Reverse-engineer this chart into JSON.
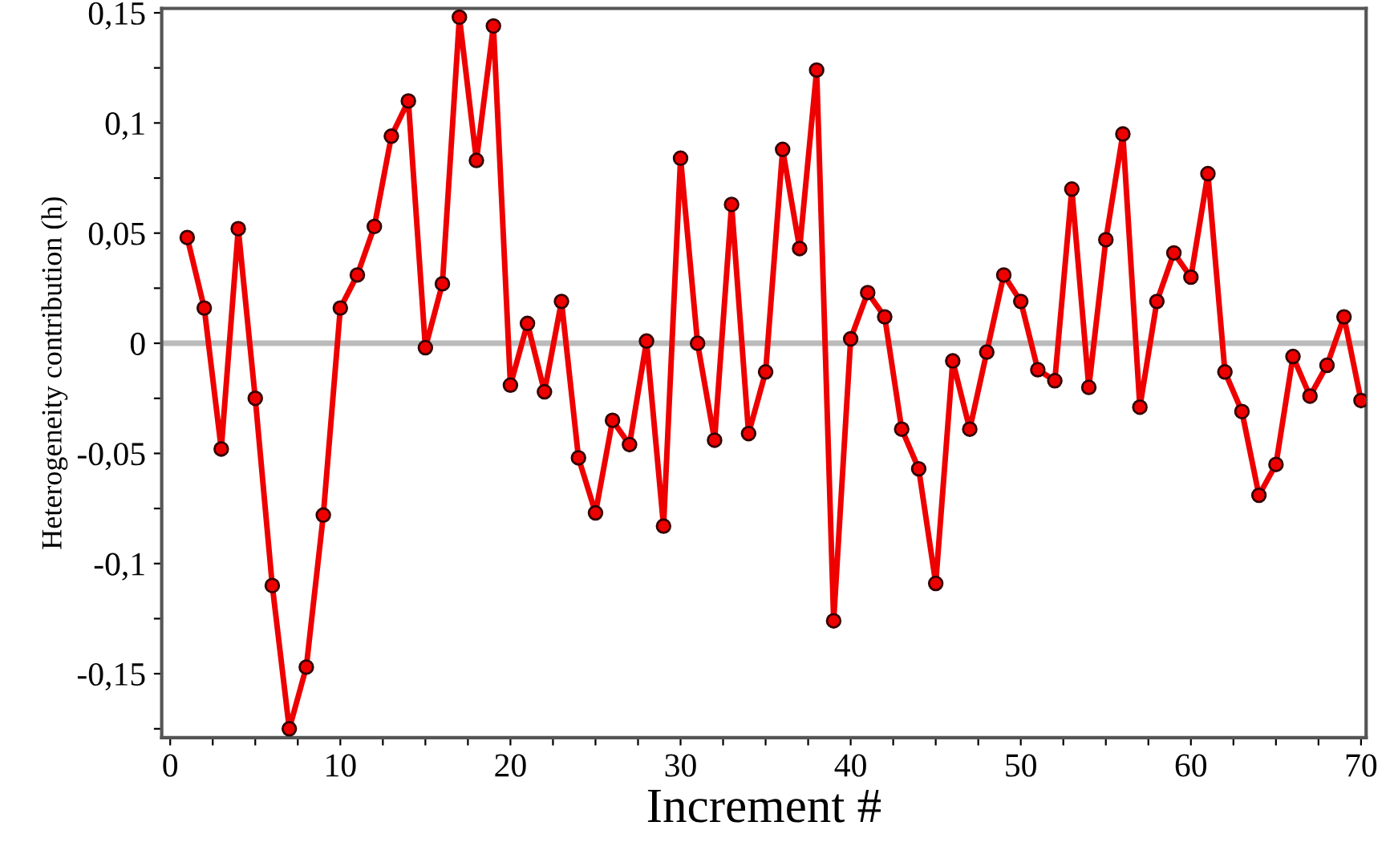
{
  "chart_data": {
    "type": "line",
    "xlabel": "Increment #",
    "ylabel": "Heterogeneity contribution (h)",
    "x": [
      1,
      2,
      3,
      4,
      5,
      6,
      7,
      8,
      9,
      10,
      11,
      12,
      13,
      14,
      15,
      16,
      17,
      18,
      19,
      20,
      21,
      22,
      23,
      24,
      25,
      26,
      27,
      28,
      29,
      30,
      31,
      32,
      33,
      34,
      35,
      36,
      37,
      38,
      39,
      40,
      41,
      42,
      43,
      44,
      45,
      46,
      47,
      48,
      49,
      50,
      51,
      52,
      53,
      54,
      55,
      56,
      57,
      58,
      59,
      60,
      61,
      62,
      63,
      64,
      65,
      66,
      67,
      68,
      69,
      70
    ],
    "series": [
      {
        "color": "#ee0000",
        "values": [
          0.048,
          0.016,
          -0.048,
          0.052,
          -0.025,
          -0.11,
          -0.175,
          -0.147,
          -0.078,
          0.016,
          0.031,
          0.053,
          0.094,
          0.11,
          -0.002,
          0.027,
          0.148,
          0.083,
          0.144,
          -0.019,
          0.009,
          -0.022,
          0.019,
          -0.052,
          -0.077,
          -0.035,
          -0.046,
          0.001,
          -0.083,
          0.084,
          0.0,
          -0.044,
          0.063,
          -0.041,
          -0.013,
          0.088,
          0.043,
          0.124,
          -0.126,
          0.002,
          0.023,
          0.012,
          -0.039,
          -0.057,
          -0.109,
          -0.008,
          -0.039,
          -0.004,
          0.031,
          0.019,
          -0.012,
          -0.017,
          0.07,
          -0.02,
          0.047,
          0.095,
          -0.029,
          0.019,
          0.041,
          0.03,
          0.077,
          -0.013,
          -0.031,
          -0.069,
          -0.055,
          -0.006,
          -0.024,
          -0.01,
          0.012,
          -0.026
        ]
      }
    ],
    "marker": "circle",
    "line_style": "solid",
    "grid": false,
    "xlim": [
      -0.5,
      70.3
    ],
    "ylim": [
      -0.179,
      0.152
    ],
    "xticks": [
      0,
      {
        "value": 2.5,
        "label": null
      },
      {
        "value": 5,
        "label": null
      },
      {
        "value": 7.5,
        "label": null
      },
      10,
      {
        "value": 12.5,
        "label": null
      },
      {
        "value": 15,
        "label": null
      },
      {
        "value": 17.5,
        "label": null
      },
      20,
      {
        "value": 22.5,
        "label": null
      },
      {
        "value": 25,
        "label": null
      },
      {
        "value": 27.5,
        "label": null
      },
      30,
      {
        "value": 32.5,
        "label": null
      },
      {
        "value": 35,
        "label": null
      },
      {
        "value": 37.5,
        "label": null
      },
      40,
      {
        "value": 42.5,
        "label": null
      },
      {
        "value": 45,
        "label": null
      },
      {
        "value": 47.5,
        "label": null
      },
      50,
      {
        "value": 52.5,
        "label": null
      },
      {
        "value": 55,
        "label": null
      },
      {
        "value": 57.5,
        "label": null
      },
      60,
      {
        "value": 62.5,
        "label": null
      },
      {
        "value": 65,
        "label": null
      },
      {
        "value": 67.5,
        "label": null
      },
      70
    ],
    "yticks": [
      {
        "value": -0.175,
        "label": null
      },
      {
        "value": -0.15,
        "label": "-0,15"
      },
      {
        "value": -0.125,
        "label": null
      },
      {
        "value": -0.1,
        "label": "-0,1"
      },
      {
        "value": -0.075,
        "label": null
      },
      {
        "value": -0.05,
        "label": "-0,05"
      },
      {
        "value": -0.025,
        "label": null
      },
      0,
      {
        "value": 0.025,
        "label": null
      },
      {
        "value": 0.05,
        "label": "0,05"
      },
      {
        "value": 0.075,
        "label": null
      },
      {
        "value": 0.1,
        "label": "0,1"
      },
      {
        "value": 0.125,
        "label": null
      },
      {
        "value": 0.15,
        "label": "0,15"
      }
    ],
    "ref_lines": [
      {
        "axis": "y",
        "value": 0,
        "color": "#bbbbbb"
      }
    ]
  }
}
